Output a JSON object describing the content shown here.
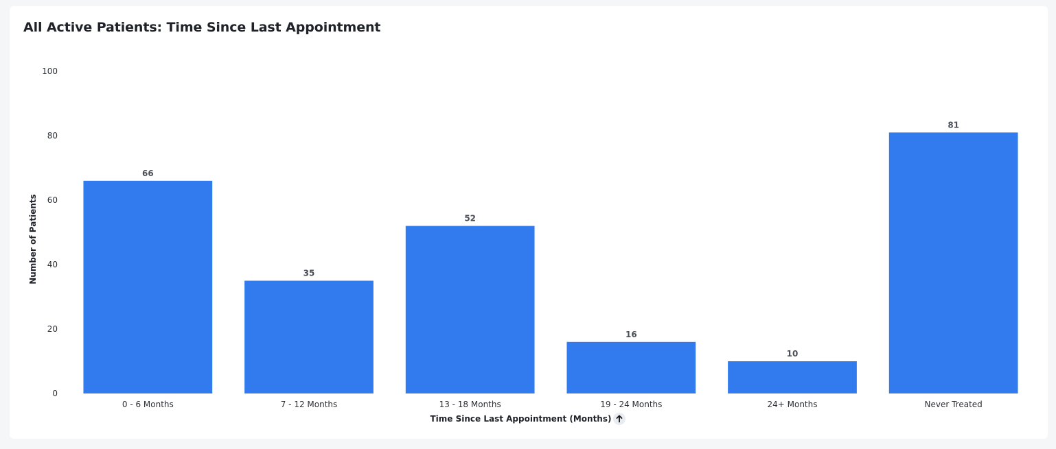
{
  "card": {
    "title": "All Active Patients: Time Since Last Appointment"
  },
  "colors": {
    "bar": "#317bef",
    "background": "#f4f6f8",
    "card": "#ffffff"
  },
  "icons": {
    "sort": "arrow-up-icon"
  },
  "chart_data": {
    "type": "bar",
    "categories": [
      "0 - 6 Months",
      "7 - 12 Months",
      "13 - 18 Months",
      "19 - 24 Months",
      "24+ Months",
      "Never Treated"
    ],
    "values": [
      66,
      35,
      52,
      16,
      10,
      81
    ],
    "title": "All Active Patients: Time Since Last Appointment",
    "xlabel": "Time Since Last Appointment (Months)",
    "ylabel": "Number of Patients",
    "ylim": [
      0,
      100
    ],
    "yticks": [
      0,
      20,
      40,
      60,
      80,
      100
    ],
    "grid": false,
    "data_labels": true
  }
}
